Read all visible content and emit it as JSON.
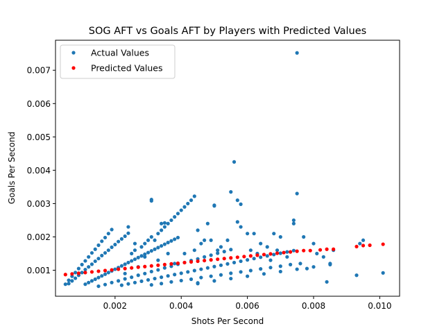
{
  "chart_data": {
    "type": "scatter",
    "title": "SOG AFT vs Goals AFT by Players with Predicted Values",
    "xlabel": "Shots Per Second",
    "ylabel": "Goals Per Second",
    "xlim": [
      0.0002,
      0.0106
    ],
    "ylim": [
      0.00022,
      0.0079
    ],
    "xticks": [
      0.002,
      0.004,
      0.006,
      0.008,
      0.01
    ],
    "xtick_labels": [
      "0.002",
      "0.004",
      "0.006",
      "0.008",
      "0.010"
    ],
    "yticks": [
      0.001,
      0.002,
      0.003,
      0.004,
      0.005,
      0.006,
      0.007
    ],
    "ytick_labels": [
      "0.001",
      "0.002",
      "0.003",
      "0.004",
      "0.005",
      "0.006",
      "0.007"
    ],
    "grid": false,
    "legend_position": "upper-left",
    "series": [
      {
        "name": "Actual Values",
        "color": "#1f77b4",
        "points": [
          [
            0.0005,
            0.00058
          ],
          [
            0.0006,
            0.0007
          ],
          [
            0.0007,
            0.00082
          ],
          [
            0.0008,
            0.00093
          ],
          [
            0.0009,
            0.00105
          ],
          [
            0.001,
            0.00117
          ],
          [
            0.0011,
            0.00128
          ],
          [
            0.0012,
            0.0014
          ],
          [
            0.0013,
            0.00152
          ],
          [
            0.0014,
            0.00163
          ],
          [
            0.0015,
            0.00175
          ],
          [
            0.0016,
            0.00187
          ],
          [
            0.0017,
            0.00198
          ],
          [
            0.0018,
            0.0021
          ],
          [
            0.0019,
            0.00222
          ],
          [
            0.0006,
            0.0006
          ],
          [
            0.0007,
            0.00068
          ],
          [
            0.0008,
            0.00076
          ],
          [
            0.0009,
            0.00085
          ],
          [
            0.001,
            0.00093
          ],
          [
            0.0011,
            0.00102
          ],
          [
            0.0012,
            0.0011
          ],
          [
            0.0013,
            0.00118
          ],
          [
            0.0014,
            0.00127
          ],
          [
            0.0015,
            0.00135
          ],
          [
            0.0016,
            0.00144
          ],
          [
            0.0017,
            0.00152
          ],
          [
            0.0018,
            0.0016
          ],
          [
            0.0019,
            0.00169
          ],
          [
            0.002,
            0.00177
          ],
          [
            0.0021,
            0.00186
          ],
          [
            0.0022,
            0.00194
          ],
          [
            0.0023,
            0.00202
          ],
          [
            0.0024,
            0.00211
          ],
          [
            0.0011,
            0.00058
          ],
          [
            0.0012,
            0.00063
          ],
          [
            0.0013,
            0.00068
          ],
          [
            0.0014,
            0.00073
          ],
          [
            0.0015,
            0.00078
          ],
          [
            0.0016,
            0.00083
          ],
          [
            0.0017,
            0.00088
          ],
          [
            0.0018,
            0.00093
          ],
          [
            0.0019,
            0.00098
          ],
          [
            0.002,
            0.00103
          ],
          [
            0.0021,
            0.00108
          ],
          [
            0.0022,
            0.00113
          ],
          [
            0.0023,
            0.00118
          ],
          [
            0.0024,
            0.00123
          ],
          [
            0.0025,
            0.00128
          ],
          [
            0.0026,
            0.00133
          ],
          [
            0.0027,
            0.00138
          ],
          [
            0.0028,
            0.00143
          ],
          [
            0.0029,
            0.00148
          ],
          [
            0.003,
            0.00153
          ],
          [
            0.0031,
            0.00158
          ],
          [
            0.0032,
            0.00163
          ],
          [
            0.0033,
            0.00168
          ],
          [
            0.0034,
            0.00173
          ],
          [
            0.0035,
            0.00178
          ],
          [
            0.0036,
            0.00183
          ],
          [
            0.0037,
            0.00188
          ],
          [
            0.0038,
            0.00193
          ],
          [
            0.0039,
            0.00198
          ],
          [
            0.0015,
            0.00052
          ],
          [
            0.0017,
            0.00057
          ],
          [
            0.0019,
            0.00063
          ],
          [
            0.0021,
            0.00068
          ],
          [
            0.0023,
            0.00074
          ],
          [
            0.0025,
            0.00079
          ],
          [
            0.0027,
            0.00085
          ],
          [
            0.0029,
            0.0009
          ],
          [
            0.0031,
            0.00096
          ],
          [
            0.0033,
            0.00101
          ],
          [
            0.0035,
            0.00107
          ],
          [
            0.0037,
            0.00112
          ],
          [
            0.0039,
            0.00118
          ],
          [
            0.0041,
            0.00123
          ],
          [
            0.0043,
            0.00129
          ],
          [
            0.0045,
            0.00134
          ],
          [
            0.0047,
            0.0014
          ],
          [
            0.0049,
            0.00145
          ],
          [
            0.0051,
            0.00151
          ],
          [
            0.0053,
            0.00156
          ],
          [
            0.0055,
            0.00162
          ],
          [
            0.0022,
            0.00055
          ],
          [
            0.0024,
            0.00059
          ],
          [
            0.0026,
            0.00063
          ],
          [
            0.0028,
            0.00067
          ],
          [
            0.003,
            0.00071
          ],
          [
            0.0032,
            0.00075
          ],
          [
            0.0034,
            0.00079
          ],
          [
            0.0036,
            0.00083
          ],
          [
            0.0038,
            0.00087
          ],
          [
            0.004,
            0.00091
          ],
          [
            0.0042,
            0.00095
          ],
          [
            0.0044,
            0.00099
          ],
          [
            0.0046,
            0.00103
          ],
          [
            0.0048,
            0.00107
          ],
          [
            0.005,
            0.00111
          ],
          [
            0.0052,
            0.00115
          ],
          [
            0.0054,
            0.00119
          ],
          [
            0.0056,
            0.00123
          ],
          [
            0.0058,
            0.00127
          ],
          [
            0.006,
            0.00131
          ],
          [
            0.0062,
            0.00135
          ],
          [
            0.0064,
            0.00139
          ],
          [
            0.0066,
            0.00143
          ],
          [
            0.0068,
            0.00147
          ],
          [
            0.007,
            0.00151
          ],
          [
            0.0072,
            0.00155
          ],
          [
            0.0074,
            0.00159
          ],
          [
            0.0031,
            0.00056
          ],
          [
            0.0034,
            0.0006
          ],
          [
            0.0037,
            0.00065
          ],
          [
            0.004,
            0.00069
          ],
          [
            0.0043,
            0.00073
          ],
          [
            0.0046,
            0.00078
          ],
          [
            0.0049,
            0.00082
          ],
          [
            0.0052,
            0.00086
          ],
          [
            0.0055,
            0.00091
          ],
          [
            0.0058,
            0.00095
          ],
          [
            0.0061,
            0.00099
          ],
          [
            0.0064,
            0.00104
          ],
          [
            0.0067,
            0.00108
          ],
          [
            0.007,
            0.00112
          ],
          [
            0.0073,
            0.00117
          ],
          [
            0.0045,
            0.0006
          ],
          [
            0.005,
            0.00068
          ],
          [
            0.0055,
            0.00075
          ],
          [
            0.006,
            0.00082
          ],
          [
            0.0065,
            0.00089
          ],
          [
            0.007,
            0.00096
          ],
          [
            0.0075,
            0.00103
          ],
          [
            0.008,
            0.0011
          ],
          [
            0.0085,
            0.00117
          ],
          [
            0.0025,
            0.0015
          ],
          [
            0.0026,
            0.0016
          ],
          [
            0.0028,
            0.0017
          ],
          [
            0.0029,
            0.0018
          ],
          [
            0.003,
            0.0019
          ],
          [
            0.0031,
            0.002
          ],
          [
            0.0033,
            0.0021
          ],
          [
            0.0034,
            0.0022
          ],
          [
            0.0035,
            0.0023
          ],
          [
            0.0036,
            0.0024
          ],
          [
            0.0037,
            0.0025
          ],
          [
            0.0038,
            0.0026
          ],
          [
            0.0039,
            0.0027
          ],
          [
            0.004,
            0.0028
          ],
          [
            0.0041,
            0.0029
          ],
          [
            0.0042,
            0.003
          ],
          [
            0.0043,
            0.0031
          ],
          [
            0.0044,
            0.00322
          ],
          [
            0.0031,
            0.00308
          ],
          [
            0.0031,
            0.00312
          ],
          [
            0.0035,
            0.00242
          ],
          [
            0.0045,
            0.0022
          ],
          [
            0.0048,
            0.0024
          ],
          [
            0.005,
            0.00295
          ],
          [
            0.005,
            0.00293
          ],
          [
            0.0056,
            0.00425
          ],
          [
            0.0055,
            0.00335
          ],
          [
            0.0057,
            0.0031
          ],
          [
            0.0058,
            0.00298
          ],
          [
            0.0057,
            0.00245
          ],
          [
            0.0058,
            0.0023
          ],
          [
            0.006,
            0.0021
          ],
          [
            0.0062,
            0.0021
          ],
          [
            0.0064,
            0.0018
          ],
          [
            0.0066,
            0.0017
          ],
          [
            0.0068,
            0.0021
          ],
          [
            0.007,
            0.002
          ],
          [
            0.0074,
            0.0025
          ],
          [
            0.0074,
            0.0024
          ],
          [
            0.0075,
            0.0033
          ],
          [
            0.0075,
            0.00752
          ],
          [
            0.0077,
            0.002
          ],
          [
            0.008,
            0.0018
          ],
          [
            0.0083,
            0.0014
          ],
          [
            0.0085,
            0.0012
          ],
          [
            0.0086,
            0.0016
          ],
          [
            0.0093,
            0.00085
          ],
          [
            0.0094,
            0.0018
          ],
          [
            0.0095,
            0.0019
          ],
          [
            0.0101,
            0.00092
          ],
          [
            0.0084,
            0.00065
          ],
          [
            0.0078,
            0.00105
          ],
          [
            0.0076,
            0.0012
          ],
          [
            0.0072,
            0.0014
          ],
          [
            0.0069,
            0.0016
          ],
          [
            0.0061,
            0.0016
          ],
          [
            0.0054,
            0.0019
          ],
          [
            0.0052,
            0.0017
          ],
          [
            0.0049,
            0.0019
          ],
          [
            0.0046,
            0.0018
          ],
          [
            0.0044,
            0.0016
          ],
          [
            0.0041,
            0.0015
          ],
          [
            0.0038,
            0.0012
          ],
          [
            0.0036,
            0.0015
          ],
          [
            0.0033,
            0.0013
          ],
          [
            0.0029,
            0.0014
          ],
          [
            0.0027,
            0.0011
          ],
          [
            0.0023,
            0.0009
          ],
          [
            0.0026,
            0.0018
          ],
          [
            0.0024,
            0.0023
          ],
          [
            0.0032,
            0.0019
          ],
          [
            0.0034,
            0.0024
          ],
          [
            0.0047,
            0.0019
          ],
          [
            0.0051,
            0.0016
          ],
          [
            0.0063,
            0.0015
          ],
          [
            0.0067,
            0.0013
          ],
          [
            0.0081,
            0.0015
          ],
          [
            0.0045,
            0.00062
          ]
        ]
      },
      {
        "name": "Predicted Values",
        "color": "#ff0000",
        "points": [
          [
            0.0005,
            0.00087
          ],
          [
            0.0007,
            0.00089
          ],
          [
            0.0009,
            0.00091
          ],
          [
            0.0011,
            0.00093
          ],
          [
            0.0013,
            0.00095
          ],
          [
            0.0015,
            0.00097
          ],
          [
            0.0017,
            0.00099
          ],
          [
            0.0019,
            0.00101
          ],
          [
            0.0021,
            0.00103
          ],
          [
            0.0023,
            0.00105
          ],
          [
            0.0025,
            0.00107
          ],
          [
            0.0027,
            0.00109
          ],
          [
            0.0029,
            0.00111
          ],
          [
            0.0031,
            0.00113
          ],
          [
            0.0033,
            0.00115
          ],
          [
            0.0035,
            0.00117
          ],
          [
            0.0037,
            0.00119
          ],
          [
            0.0039,
            0.00121
          ],
          [
            0.0041,
            0.00123
          ],
          [
            0.0043,
            0.00125
          ],
          [
            0.0045,
            0.00127
          ],
          [
            0.0047,
            0.00129
          ],
          [
            0.0049,
            0.00131
          ],
          [
            0.0051,
            0.00133
          ],
          [
            0.0053,
            0.00135
          ],
          [
            0.0055,
            0.00137
          ],
          [
            0.0057,
            0.00139
          ],
          [
            0.0059,
            0.00141
          ],
          [
            0.0061,
            0.00143
          ],
          [
            0.0063,
            0.00145
          ],
          [
            0.0065,
            0.00147
          ],
          [
            0.0067,
            0.00149
          ],
          [
            0.0069,
            0.00151
          ],
          [
            0.0071,
            0.00153
          ],
          [
            0.0073,
            0.00155
          ],
          [
            0.0075,
            0.00157
          ],
          [
            0.0077,
            0.00159
          ],
          [
            0.0079,
            0.00159
          ],
          [
            0.0082,
            0.00161
          ],
          [
            0.0084,
            0.00163
          ],
          [
            0.0086,
            0.00163
          ],
          [
            0.0093,
            0.00171
          ],
          [
            0.0095,
            0.00174
          ],
          [
            0.0097,
            0.00175
          ],
          [
            0.0101,
            0.00178
          ]
        ]
      }
    ]
  }
}
